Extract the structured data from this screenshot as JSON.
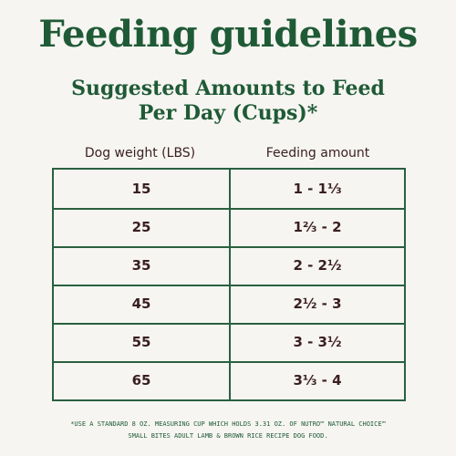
{
  "title": "Feeding guidelines",
  "subtitle": {
    "line1": "Suggested Amounts to Feed",
    "line2": "Per Day (Cups)*"
  },
  "table": {
    "headers": [
      "Dog weight (LBS)",
      "Feeding amount"
    ],
    "rows": [
      {
        "weight": "15",
        "amount": "1 - 1⅓"
      },
      {
        "weight": "25",
        "amount": "1⅔ - 2"
      },
      {
        "weight": "35",
        "amount": "2 - 2½"
      },
      {
        "weight": "45",
        "amount": "2½ - 3"
      },
      {
        "weight": "55",
        "amount": "3 - 3½"
      },
      {
        "weight": "65",
        "amount": "3⅓ - 4"
      }
    ]
  },
  "footnote": {
    "line1": "*Use a standard 8 oz. measuring cup which holds 3.31 oz. of Nutro™ Natural Choice™",
    "line2": "Small Bites Adult Lamb & Brown Rice Recipe Dog Food."
  },
  "colors": {
    "background": "#f6f5f1",
    "brand_green": "#1f5a36",
    "text_dark": "#3a1e21"
  }
}
